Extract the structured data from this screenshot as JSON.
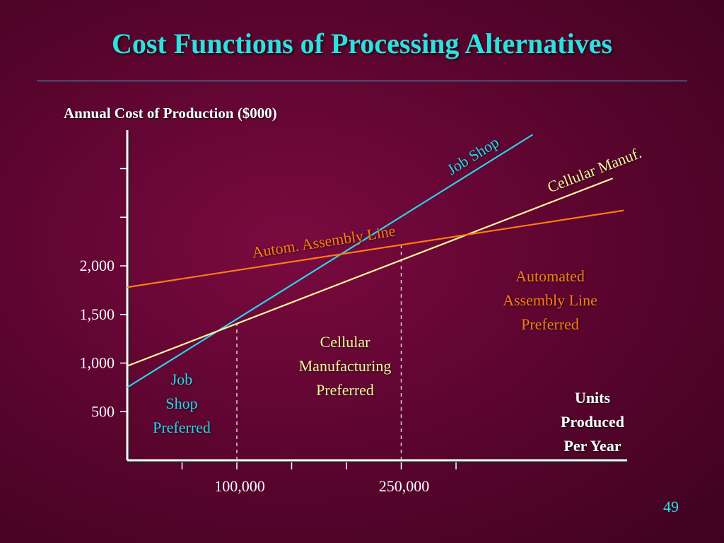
{
  "slide": {
    "title": "Cost Functions of Processing Alternatives",
    "page_number": "49"
  },
  "colors": {
    "background": "#5e0530",
    "title": "#2ee0e0",
    "job_shop": "#2ad4ea",
    "cellular": "#fff29a",
    "automated": "#ff7a12",
    "axis": "#ffffff"
  },
  "chart_data": {
    "type": "line",
    "title": "",
    "ylabel": "Annual Cost of Production ($000)",
    "xlabel": "Units Produced Per Year",
    "xlim": [
      0,
      450000
    ],
    "ylim": [
      0,
      3500
    ],
    "y_ticks": [
      {
        "value": 500,
        "label": "500"
      },
      {
        "value": 1000,
        "label": "1,000"
      },
      {
        "value": 1500,
        "label": "1,500"
      },
      {
        "value": 2000,
        "label": "2,000"
      },
      {
        "value": 2500,
        "label": ""
      },
      {
        "value": 3000,
        "label": ""
      }
    ],
    "x_ticks": [
      {
        "value": 50000,
        "label": ""
      },
      {
        "value": 100000,
        "label": "100,000"
      },
      {
        "value": 150000,
        "label": ""
      },
      {
        "value": 200000,
        "label": ""
      },
      {
        "value": 250000,
        "label": "250,000"
      },
      {
        "value": 300000,
        "label": ""
      }
    ],
    "series": [
      {
        "name": "Job Shop",
        "key": "job_shop",
        "points": [
          [
            0,
            750
          ],
          [
            370000,
            3350
          ]
        ]
      },
      {
        "name": "Cellular Manuf.",
        "key": "cellular",
        "points": [
          [
            0,
            970
          ],
          [
            443000,
            2900
          ]
        ]
      },
      {
        "name": "Autom. Assembly Line",
        "key": "automated",
        "points": [
          [
            0,
            1780
          ],
          [
            453000,
            2570
          ]
        ]
      }
    ],
    "breakeven_x": [
      100000,
      250000
    ],
    "regions": [
      {
        "key": "job_shop",
        "lines": [
          "Job",
          "Shop",
          "Preferred"
        ]
      },
      {
        "key": "cellular",
        "lines": [
          "Cellular",
          "Manufacturing",
          "Preferred"
        ]
      },
      {
        "key": "automated",
        "lines": [
          "Automated",
          "Assembly Line",
          "Preferred"
        ]
      }
    ]
  }
}
